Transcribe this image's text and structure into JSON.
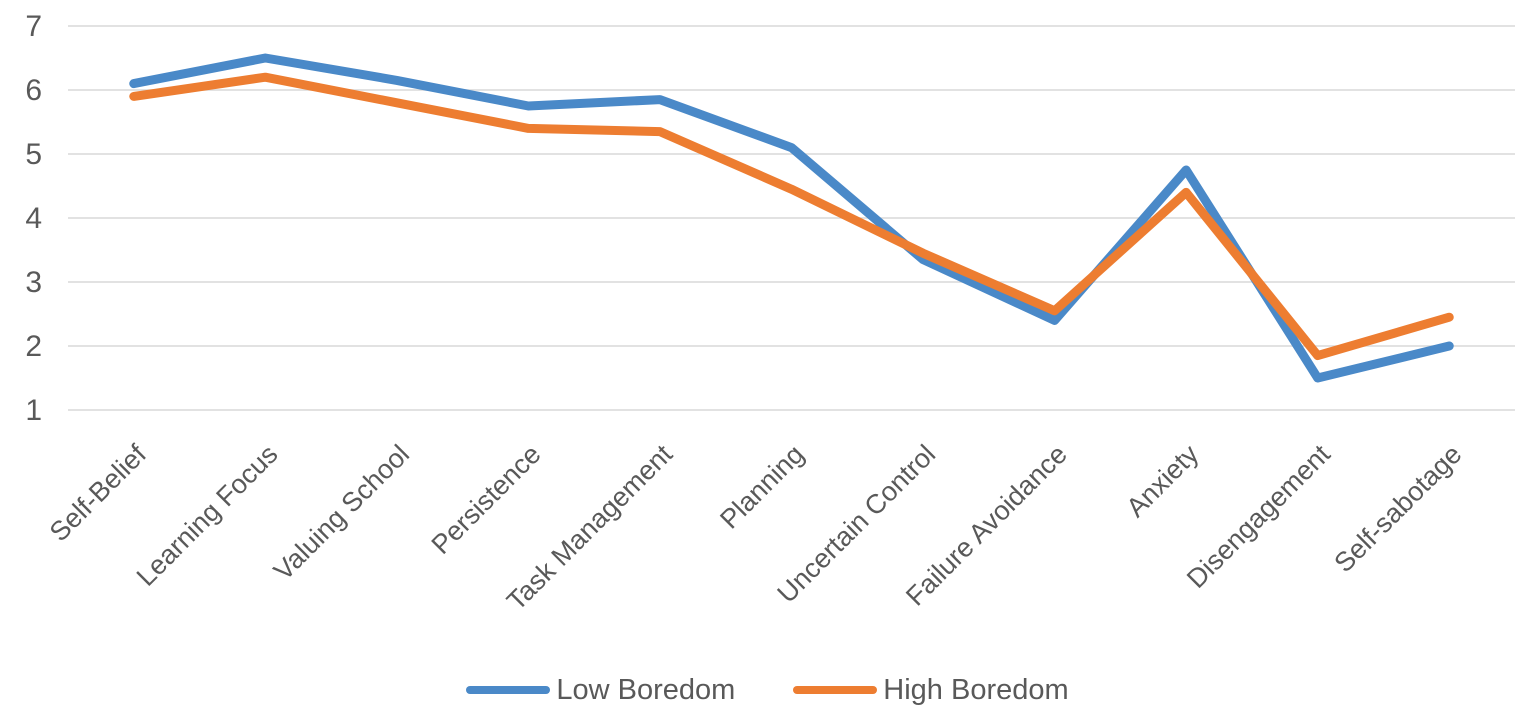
{
  "chart_data": {
    "type": "line",
    "title": "",
    "xlabel": "",
    "ylabel": "",
    "categories": [
      "Self-Belief",
      "Learning Focus",
      "Valuing School",
      "Persistence",
      "Task Management",
      "Planning",
      "Uncertain Control",
      "Failure Avoidance",
      "Anxiety",
      "Disengagement",
      "Self-sabotage"
    ],
    "series": [
      {
        "name": "Low Boredom",
        "color": "#4a89c8",
        "values": [
          6.1,
          6.5,
          6.15,
          5.75,
          5.85,
          5.1,
          3.35,
          2.4,
          4.75,
          1.5,
          2.0
        ]
      },
      {
        "name": "High Boredom",
        "color": "#ed7d31",
        "values": [
          5.9,
          6.2,
          5.8,
          5.4,
          5.35,
          4.45,
          3.45,
          2.55,
          4.4,
          1.85,
          2.45
        ]
      }
    ],
    "yaxis": {
      "min": 1,
      "max": 7,
      "step": 1,
      "ticks": [
        7,
        6,
        5,
        4,
        3,
        2,
        1
      ]
    },
    "layout": {
      "grid": true,
      "grid_color": "#d9d9d9",
      "text_color": "#595959",
      "background": "#ffffff",
      "legend_position": "bottom",
      "x_label_rotation": -45,
      "line_width": 9,
      "markers": false
    }
  }
}
